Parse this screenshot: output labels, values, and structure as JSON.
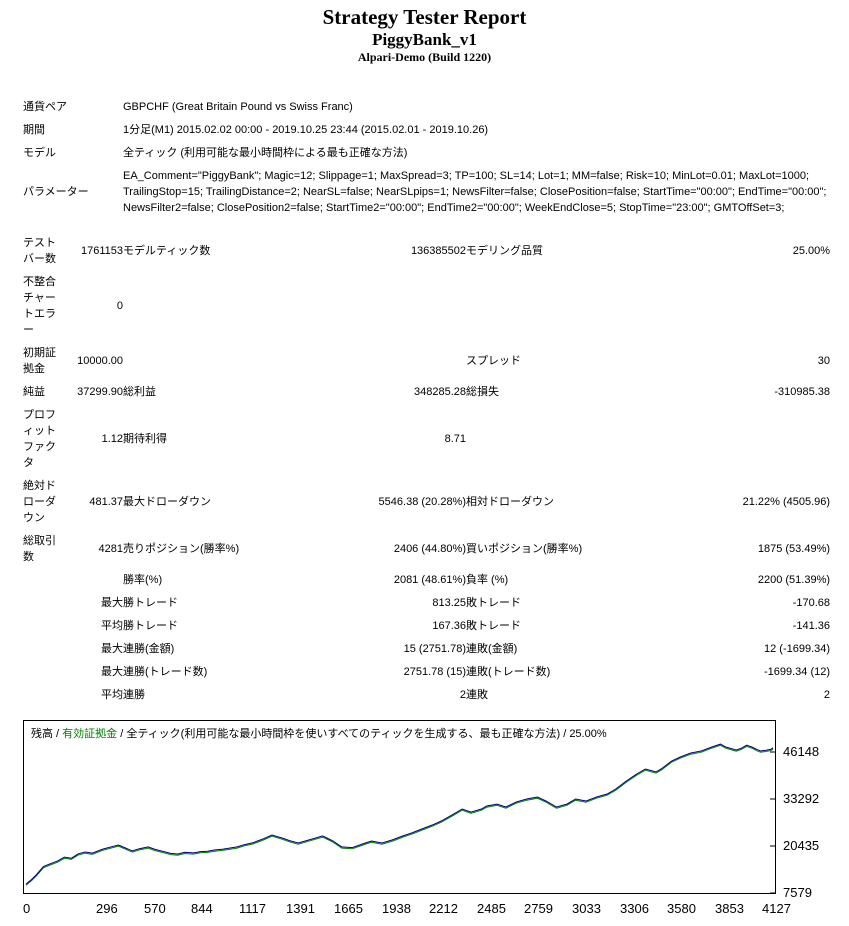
{
  "header": {
    "title": "Strategy Tester Report",
    "subtitle": "PiggyBank_v1",
    "build": "Alpari-Demo (Build 1220)"
  },
  "report": {
    "rows": [
      {
        "c1": "通貨ペア",
        "wide": "GBPCHF (Great Britain Pound vs Swiss Franc)"
      },
      {
        "c1": "期間",
        "wide": "1分足(M1) 2015.02.02 00:00 - 2019.10.25 23:44 (2015.02.01 - 2019.10.26)"
      },
      {
        "c1": "モデル",
        "wide": "全ティック (利用可能な最小時間枠による最も正確な方法)"
      },
      {
        "c1": "パラメーター",
        "wide": "EA_Comment=\"PiggyBank\"; Magic=12; Slippage=1; MaxSpread=3; TP=100; SL=14; Lot=1; MM=false; Risk=10; MinLot=0.01; MaxLot=1000; TrailingStop=15; TrailingDistance=2; NearSL=false; NearSLpips=1; NewsFilter=false; ClosePosition=false; StartTime=\"00:00\"; EndTime=\"00:00\"; NewsFilter2=false; ClosePosition2=false; StartTime2=\"00:00\"; EndTime2=\"00:00\"; WeekEndClose=5; StopTime=\"23:00\"; GMTOffSet=3;"
      },
      {
        "gap": true,
        "c1": "テスト\nバー数",
        "c2": "1761153",
        "c3": "モデルティック数",
        "c4": "136385502",
        "c5": "モデリング品質",
        "c6": "25.00%"
      },
      {
        "c1": "不整合\nチャー\nトエラ\nー",
        "c2": "0"
      },
      {
        "c1": "初期証\n拠金",
        "c2": "10000.00",
        "c5": "スプレッド",
        "c6": "30"
      },
      {
        "c1": "純益",
        "c2": "37299.90",
        "c3": "総利益",
        "c4": "348285.28",
        "c5": "総損失",
        "c6": "-310985.38"
      },
      {
        "c1": "プロフ\nィット\nファク\nタ",
        "c2": "1.12",
        "c3": "期待利得",
        "c4": "8.71"
      },
      {
        "c1": "絶対ド\nローダ\nウン",
        "c2": "481.37",
        "c3": "最大ドローダウン",
        "c4": "5546.38 (20.28%)",
        "c5": "相対ドローダウン",
        "c6": "21.22% (4505.96)"
      },
      {
        "c1": "総取引\n数",
        "c2": "4281",
        "c3": "売りポジション(勝率%)",
        "c4": "2406 (44.80%)",
        "c5": "買いポジション(勝率%)",
        "c6": "1875 (53.49%)"
      },
      {
        "c3": "勝率(%)",
        "c4": "2081 (48.61%)",
        "c5": "負率 (%)",
        "c6": "2200 (51.39%)"
      },
      {
        "c2": "最大",
        "c3": "勝トレード",
        "c4": "813.25",
        "c5": "敗トレード",
        "c6": "-170.68"
      },
      {
        "c2": "平均",
        "c3": "勝トレード",
        "c4": "167.36",
        "c5": "敗トレード",
        "c6": "-141.36"
      },
      {
        "c2": "最大",
        "c3": "連勝(金額)",
        "c4": "15 (2751.78)",
        "c5": "連敗(金額)",
        "c6": "12 (-1699.34)"
      },
      {
        "c2": "最大",
        "c3": "連勝(トレード数)",
        "c4": "2751.78 (15)",
        "c5": "連敗(トレード数)",
        "c6": "-1699.34 (12)"
      },
      {
        "c2": "平均",
        "c3": "連勝",
        "c4": "2",
        "c5": "連敗",
        "c6": "2"
      }
    ]
  },
  "chart_data": {
    "type": "line",
    "legend": {
      "balance": "残高",
      "sep": " / ",
      "equity": "有効証拠金",
      "model": "全ティック(利用可能な最小時間枠を使いすべてのティックを生成する、最も正確な方法)",
      "quality": "25.00%"
    },
    "xlabel": "",
    "ylabel": "",
    "x_range": [
      0,
      4281
    ],
    "x_ticks": [
      "0",
      "296",
      "570",
      "844",
      "1117",
      "1391",
      "1665",
      "1938",
      "2212",
      "2485",
      "2759",
      "3033",
      "3306",
      "3580",
      "3853",
      "4127"
    ],
    "y_ticks": [
      46148,
      33292,
      20435,
      7579
    ],
    "colors": {
      "balance_line": "#000080",
      "equity_line": "#008000"
    },
    "series": [
      {
        "name": "残高",
        "points": [
          [
            0,
            10000
          ],
          [
            30,
            11200
          ],
          [
            60,
            12600
          ],
          [
            100,
            14800
          ],
          [
            140,
            15600
          ],
          [
            180,
            16300
          ],
          [
            220,
            17400
          ],
          [
            260,
            17100
          ],
          [
            300,
            18300
          ],
          [
            340,
            18800
          ],
          [
            380,
            18500
          ],
          [
            440,
            19600
          ],
          [
            480,
            20100
          ],
          [
            530,
            20700
          ],
          [
            570,
            19900
          ],
          [
            610,
            19100
          ],
          [
            650,
            19700
          ],
          [
            700,
            20200
          ],
          [
            740,
            19500
          ],
          [
            790,
            18900
          ],
          [
            830,
            18400
          ],
          [
            870,
            18250
          ],
          [
            910,
            18700
          ],
          [
            960,
            18550
          ],
          [
            1000,
            18900
          ],
          [
            1040,
            19000
          ],
          [
            1080,
            19350
          ],
          [
            1130,
            19600
          ],
          [
            1170,
            19900
          ],
          [
            1210,
            20200
          ],
          [
            1250,
            20800
          ],
          [
            1300,
            21300
          ],
          [
            1360,
            22400
          ],
          [
            1410,
            23450
          ],
          [
            1440,
            23000
          ],
          [
            1470,
            22600
          ],
          [
            1510,
            21900
          ],
          [
            1560,
            21250
          ],
          [
            1600,
            21800
          ],
          [
            1640,
            22350
          ],
          [
            1700,
            23200
          ],
          [
            1730,
            22500
          ],
          [
            1760,
            21800
          ],
          [
            1810,
            20200
          ],
          [
            1870,
            20000
          ],
          [
            1930,
            21000
          ],
          [
            1980,
            21800
          ],
          [
            2040,
            21250
          ],
          [
            2100,
            22100
          ],
          [
            2160,
            23200
          ],
          [
            2210,
            24000
          ],
          [
            2270,
            25100
          ],
          [
            2330,
            26200
          ],
          [
            2380,
            27270
          ],
          [
            2440,
            28900
          ],
          [
            2500,
            30550
          ],
          [
            2550,
            29700
          ],
          [
            2610,
            30550
          ],
          [
            2640,
            31380
          ],
          [
            2700,
            31900
          ],
          [
            2750,
            31100
          ],
          [
            2810,
            32470
          ],
          [
            2870,
            33290
          ],
          [
            2930,
            33840
          ],
          [
            2980,
            32740
          ],
          [
            3040,
            31100
          ],
          [
            3100,
            31900
          ],
          [
            3150,
            33290
          ],
          [
            3210,
            32740
          ],
          [
            3270,
            33840
          ],
          [
            3330,
            34660
          ],
          [
            3380,
            36030
          ],
          [
            3440,
            38220
          ],
          [
            3500,
            40130
          ],
          [
            3550,
            41500
          ],
          [
            3610,
            40700
          ],
          [
            3640,
            41500
          ],
          [
            3700,
            43690
          ],
          [
            3750,
            44780
          ],
          [
            3810,
            45870
          ],
          [
            3870,
            46420
          ],
          [
            3930,
            47510
          ],
          [
            3980,
            48300
          ],
          [
            4010,
            47510
          ],
          [
            4070,
            46700
          ],
          [
            4100,
            47200
          ],
          [
            4130,
            48000
          ],
          [
            4160,
            47510
          ],
          [
            4190,
            46800
          ],
          [
            4210,
            46420
          ],
          [
            4240,
            46600
          ],
          [
            4270,
            46900
          ],
          [
            4281,
            47300
          ]
        ]
      }
    ]
  }
}
